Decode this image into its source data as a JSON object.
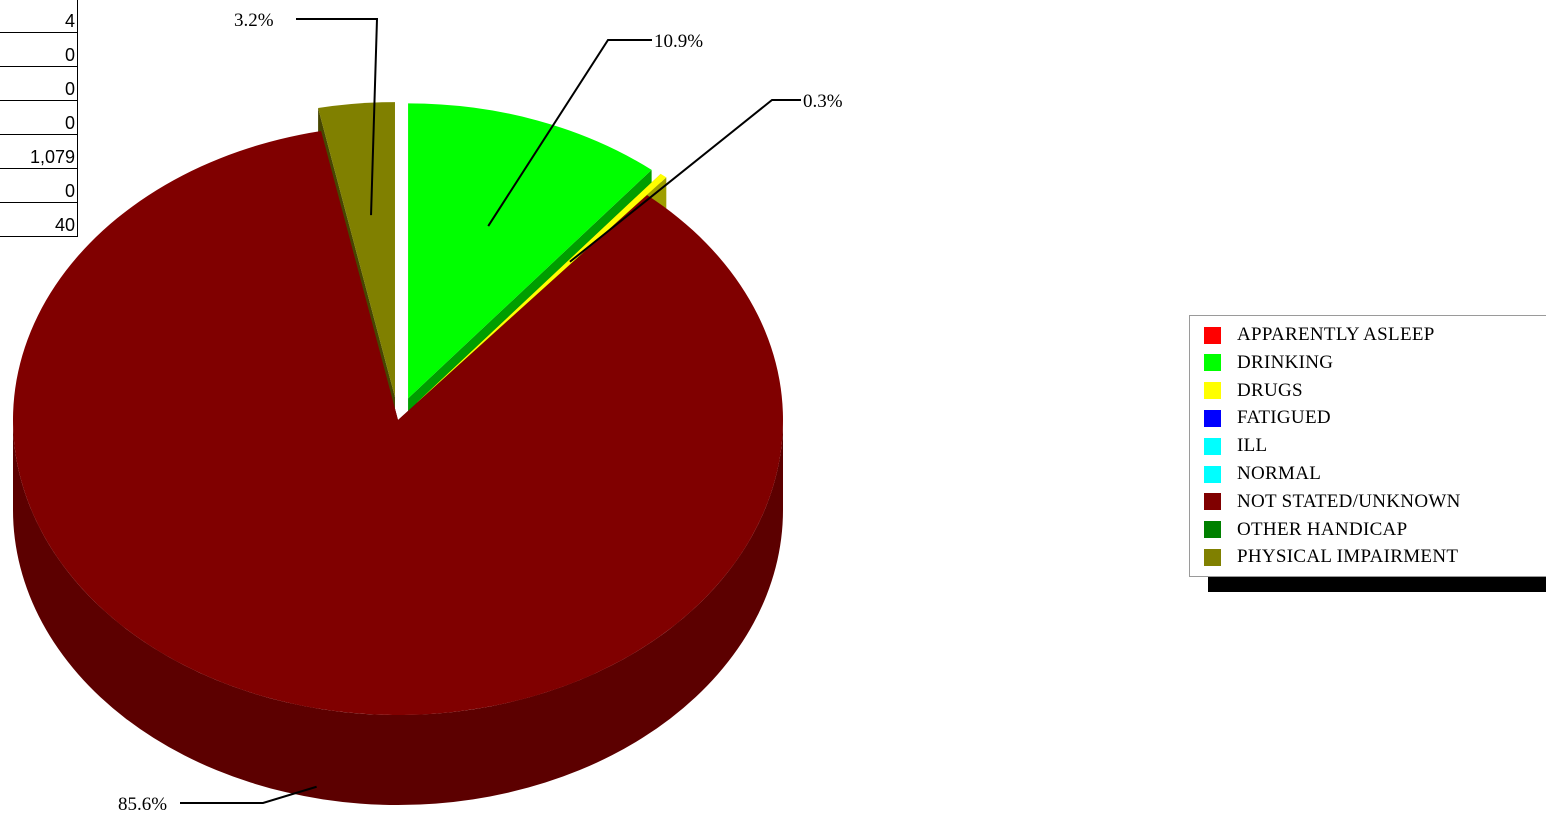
{
  "table": {
    "values": [
      "4",
      "0",
      "0",
      "0",
      "1,079",
      "0",
      "40"
    ]
  },
  "chart_data": {
    "type": "pie",
    "style": "3d-exploded",
    "slices": [
      {
        "label": "APPARENTLY ASLEEP",
        "value": 0.0,
        "color": "#ff0000"
      },
      {
        "label": "DRINKING",
        "value": 10.9,
        "color": "#00ff00",
        "data_label": "10.9%"
      },
      {
        "label": "DRUGS",
        "value": 0.3,
        "color": "#ffff00",
        "data_label": "0.3%"
      },
      {
        "label": "FATIGUED",
        "value": 0.0,
        "color": "#0000ff"
      },
      {
        "label": "ILL",
        "value": 0.0,
        "color": "#00ffff"
      },
      {
        "label": "NORMAL",
        "value": 0.0,
        "color": "#00ffff"
      },
      {
        "label": "NOT STATED/UNKNOWN",
        "value": 85.6,
        "color": "#800000",
        "data_label": "85.6%"
      },
      {
        "label": "OTHER HANDICAP",
        "value": 0.0,
        "color": "#008000"
      },
      {
        "label": "PHYSICAL IMPAIRMENT",
        "value": 3.2,
        "color": "#808000",
        "data_label": "3.2%"
      }
    ],
    "legend": {
      "position": "right",
      "items": [
        {
          "label": "APPARENTLY ASLEEP",
          "color": "#ff0000"
        },
        {
          "label": "DRINKING",
          "color": "#00ff00"
        },
        {
          "label": "DRUGS",
          "color": "#ffff00"
        },
        {
          "label": "FATIGUED",
          "color": "#0000ff"
        },
        {
          "label": "ILL",
          "color": "#00ffff"
        },
        {
          "label": "NORMAL",
          "color": "#00ffff"
        },
        {
          "label": "NOT STATED/UNKNOWN",
          "color": "#800000"
        },
        {
          "label": "OTHER HANDICAP",
          "color": "#008000"
        },
        {
          "label": "PHYSICAL IMPAIRMENT",
          "color": "#808000"
        }
      ]
    }
  }
}
